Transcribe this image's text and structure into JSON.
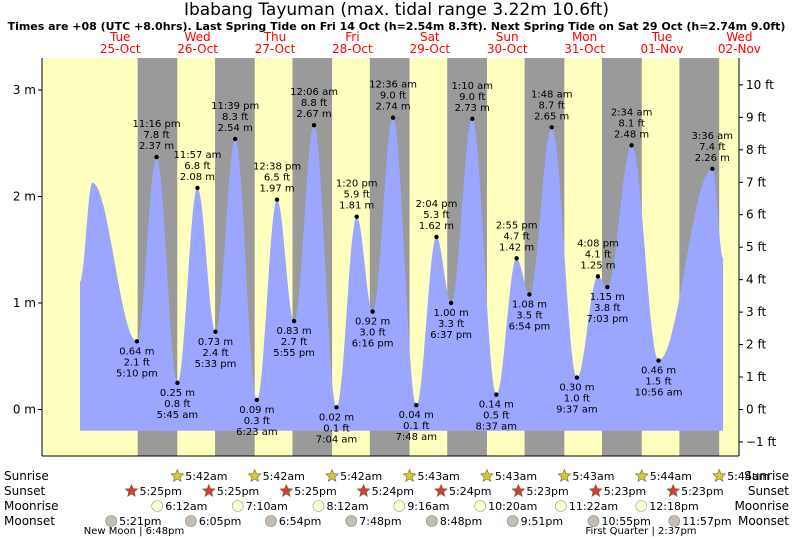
{
  "title": "Ibabang Tayuman (max. tidal range 3.22m 10.6ft)",
  "subtitle": "Times are +08 (UTC +8.0hrs). Last Spring Tide on Fri 14 Oct (h=2.54m 8.3ft). Next Spring Tide on Sat 29 Oct (h=2.74m 9.0ft)",
  "colors": {
    "day": "#ffffc0",
    "night": "#9a9a9a",
    "water": "#9aa6ff",
    "day_label": "#ff0000",
    "sun_icon": "#d7c83a",
    "sunset_icon": "#d83a3a",
    "moonrise_icon": "#ffffd2",
    "moonset_icon": "#c5beb0"
  },
  "chart_data": {
    "type": "area",
    "ylabel_left_unit": "m",
    "ylabel_right_unit": "ft",
    "ylim_m": [
      -0.5,
      3.3
    ],
    "yticks_left": [
      {
        "v": 0,
        "label": "0 m"
      },
      {
        "v": 1,
        "label": "1 m"
      },
      {
        "v": 2,
        "label": "2 m"
      },
      {
        "v": 3,
        "label": "3 m"
      }
    ],
    "yticks_right": [
      {
        "v": -1,
        "label": "−1 ft"
      },
      {
        "v": 0,
        "label": "0 ft"
      },
      {
        "v": 1,
        "label": "1 ft"
      },
      {
        "v": 2,
        "label": "2 ft"
      },
      {
        "v": 3,
        "label": "3 ft"
      },
      {
        "v": 4,
        "label": "4 ft"
      },
      {
        "v": 5,
        "label": "5 ft"
      },
      {
        "v": 6,
        "label": "6 ft"
      },
      {
        "v": 7,
        "label": "7 ft"
      },
      {
        "v": 8,
        "label": "8 ft"
      },
      {
        "v": 9,
        "label": "9 ft"
      },
      {
        "v": 10,
        "label": "10 ft"
      }
    ],
    "days": [
      {
        "dow": "Tue",
        "date": "25-Oct"
      },
      {
        "dow": "Wed",
        "date": "26-Oct"
      },
      {
        "dow": "Thu",
        "date": "27-Oct"
      },
      {
        "dow": "Fri",
        "date": "28-Oct"
      },
      {
        "dow": "Sat",
        "date": "29-Oct"
      },
      {
        "dow": "Sun",
        "date": "30-Oct"
      },
      {
        "dow": "Mon",
        "date": "31-Oct"
      },
      {
        "dow": "Tue",
        "date": "01-Nov"
      },
      {
        "dow": "Wed",
        "date": "02-Nov"
      }
    ],
    "extremes": [
      {
        "day": 0,
        "time": "5:10 pm",
        "m": 0.64,
        "ft": "2.1 ft",
        "type": "low"
      },
      {
        "day": 0,
        "time": "11:16 pm",
        "m": 2.37,
        "ft": "7.8 ft",
        "type": "high"
      },
      {
        "day": 1,
        "time": "5:45 am",
        "m": 0.25,
        "ft": "0.8 ft",
        "type": "low"
      },
      {
        "day": 1,
        "time": "11:57 am",
        "m": 2.08,
        "ft": "6.8 ft",
        "type": "high"
      },
      {
        "day": 1,
        "time": "5:33 pm",
        "m": 0.73,
        "ft": "2.4 ft",
        "type": "low"
      },
      {
        "day": 1,
        "time": "11:39 pm",
        "m": 2.54,
        "ft": "8.3 ft",
        "type": "high"
      },
      {
        "day": 2,
        "time": "6:23 am",
        "m": 0.09,
        "ft": "0.3 ft",
        "type": "low"
      },
      {
        "day": 2,
        "time": "12:38 pm",
        "m": 1.97,
        "ft": "6.5 ft",
        "type": "high"
      },
      {
        "day": 2,
        "time": "5:55 pm",
        "m": 0.83,
        "ft": "2.7 ft",
        "type": "low"
      },
      {
        "day": 3,
        "time": "12:06 am",
        "m": 2.67,
        "ft": "8.8 ft",
        "type": "high"
      },
      {
        "day": 3,
        "time": "7:04 am",
        "m": 0.02,
        "ft": "0.1 ft",
        "type": "low"
      },
      {
        "day": 3,
        "time": "1:20 pm",
        "m": 1.81,
        "ft": "5.9 ft",
        "type": "high"
      },
      {
        "day": 3,
        "time": "6:16 pm",
        "m": 0.92,
        "ft": "3.0 ft",
        "type": "low"
      },
      {
        "day": 4,
        "time": "12:36 am",
        "m": 2.74,
        "ft": "9.0 ft",
        "type": "high"
      },
      {
        "day": 4,
        "time": "7:48 am",
        "m": 0.04,
        "ft": "0.1 ft",
        "type": "low"
      },
      {
        "day": 4,
        "time": "2:04 pm",
        "m": 1.62,
        "ft": "5.3 ft",
        "type": "high"
      },
      {
        "day": 4,
        "time": "6:37 pm",
        "m": 1.0,
        "ft": "3.3 ft",
        "type": "low"
      },
      {
        "day": 5,
        "time": "1:10 am",
        "m": 2.73,
        "ft": "9.0 ft",
        "type": "high"
      },
      {
        "day": 5,
        "time": "8:37 am",
        "m": 0.14,
        "ft": "0.5 ft",
        "type": "low"
      },
      {
        "day": 5,
        "time": "2:55 pm",
        "m": 1.42,
        "ft": "4.7 ft",
        "type": "high"
      },
      {
        "day": 5,
        "time": "6:54 pm",
        "m": 1.08,
        "ft": "3.5 ft",
        "type": "low"
      },
      {
        "day": 6,
        "time": "1:48 am",
        "m": 2.65,
        "ft": "8.7 ft",
        "type": "high"
      },
      {
        "day": 6,
        "time": "9:37 am",
        "m": 0.3,
        "ft": "1.0 ft",
        "type": "low"
      },
      {
        "day": 6,
        "time": "4:08 pm",
        "m": 1.25,
        "ft": "4.1 ft",
        "type": "high"
      },
      {
        "day": 6,
        "time": "7:03 pm",
        "m": 1.15,
        "ft": "3.8 ft",
        "type": "low"
      },
      {
        "day": 7,
        "time": "2:34 am",
        "m": 2.48,
        "ft": "8.1 ft",
        "type": "high"
      },
      {
        "day": 7,
        "time": "10:56 am",
        "m": 0.46,
        "ft": "1.5 ft",
        "type": "low"
      },
      {
        "day": 8,
        "time": "3:36 am",
        "m": 2.26,
        "ft": "7.4 ft",
        "type": "high"
      }
    ],
    "sunrise": [
      "5:42am",
      "5:42am",
      "5:42am",
      "5:43am",
      "5:43am",
      "5:43am",
      "5:44am",
      "5:44am"
    ],
    "sunset": [
      "5:25pm",
      "5:25pm",
      "5:25pm",
      "5:24pm",
      "5:24pm",
      "5:23pm",
      "5:23pm",
      "5:23pm"
    ],
    "moonrise": [
      "6:12am",
      "7:10am",
      "8:12am",
      "9:16am",
      "10:20am",
      "11:22am",
      "12:18pm"
    ],
    "moonset": [
      "5:21pm",
      "6:05pm",
      "6:54pm",
      "7:48pm",
      "8:48pm",
      "9:51pm",
      "10:55pm",
      "11:57pm"
    ],
    "row_labels": [
      "Sunrise",
      "Sunset",
      "Moonrise",
      "Moonset"
    ],
    "moon_phases": [
      {
        "label": "New Moon | 6:48pm"
      },
      {
        "label": "First Quarter | 2:37pm"
      }
    ]
  }
}
